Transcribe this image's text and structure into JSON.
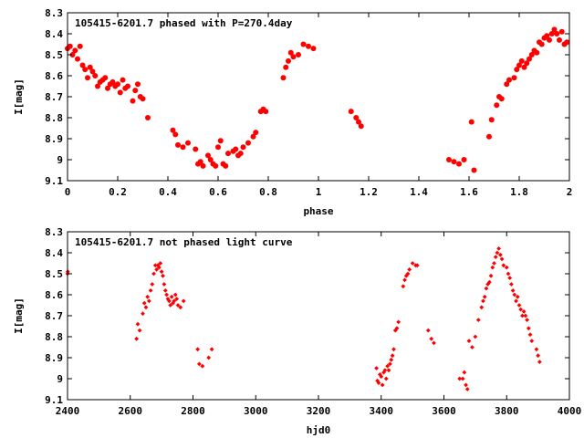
{
  "colors": {
    "points": "#ff0000",
    "axes": "#000000",
    "background": "#ffffff"
  },
  "chart_data": [
    {
      "type": "scatter",
      "title": "105415-6201.7 phased with P=270.4day",
      "xlabel": "phase",
      "ylabel": "I[mag]",
      "xlim": [
        0,
        2
      ],
      "ylim": [
        9.1,
        8.3
      ],
      "y_inverted": true,
      "grid": false,
      "marker": "filled-dot",
      "xticks": [
        "0",
        "0.2",
        "0.4",
        "0.6",
        "0.8",
        "1",
        "1.2",
        "1.4",
        "1.6",
        "1.8",
        "2"
      ],
      "yticks": [
        "8.3",
        "8.4",
        "8.5",
        "8.6",
        "8.7",
        "8.8",
        "8.9",
        "9",
        "9.1"
      ],
      "x": [
        0.0,
        0.01,
        0.02,
        0.03,
        0.04,
        0.05,
        0.06,
        0.07,
        0.08,
        0.09,
        0.1,
        0.11,
        0.12,
        0.13,
        0.14,
        0.15,
        0.16,
        0.17,
        0.18,
        0.19,
        0.2,
        0.21,
        0.22,
        0.23,
        0.24,
        0.26,
        0.27,
        0.28,
        0.29,
        0.3,
        0.32,
        0.42,
        0.43,
        0.44,
        0.46,
        0.48,
        0.51,
        0.52,
        0.53,
        0.54,
        0.56,
        0.57,
        0.58,
        0.59,
        0.6,
        0.61,
        0.62,
        0.63,
        0.64,
        0.66,
        0.67,
        0.68,
        0.69,
        0.7,
        0.72,
        0.74,
        0.75,
        0.77,
        0.78,
        0.79,
        0.86,
        0.87,
        0.88,
        0.89,
        0.9,
        0.92,
        0.94,
        0.96,
        0.98,
        1.13,
        1.15,
        1.16,
        1.17,
        1.52,
        1.54,
        1.56,
        1.58,
        1.61,
        1.62,
        1.68,
        1.69,
        1.71,
        1.72,
        1.73,
        1.75,
        1.76,
        1.78,
        1.79,
        1.8,
        1.81,
        1.82,
        1.83,
        1.84,
        1.85,
        1.86,
        1.87,
        1.88,
        1.89,
        1.9,
        1.91,
        1.92,
        1.93,
        1.94,
        1.95,
        1.96,
        1.97,
        1.98,
        1.99
      ],
      "y": [
        8.47,
        8.46,
        8.5,
        8.48,
        8.52,
        8.46,
        8.55,
        8.57,
        8.61,
        8.56,
        8.58,
        8.6,
        8.65,
        8.63,
        8.62,
        8.61,
        8.66,
        8.64,
        8.63,
        8.65,
        8.64,
        8.68,
        8.62,
        8.66,
        8.65,
        8.72,
        8.67,
        8.64,
        8.7,
        8.71,
        8.8,
        8.86,
        8.88,
        8.93,
        8.94,
        8.92,
        8.95,
        9.02,
        9.01,
        9.03,
        8.98,
        9.0,
        9.02,
        9.03,
        8.94,
        8.91,
        9.02,
        9.03,
        8.97,
        8.96,
        8.95,
        8.98,
        8.97,
        8.94,
        8.92,
        8.89,
        8.87,
        8.77,
        8.76,
        8.77,
        8.61,
        8.56,
        8.53,
        8.49,
        8.51,
        8.5,
        8.45,
        8.46,
        8.47,
        8.77,
        8.8,
        8.82,
        8.84,
        9.0,
        9.01,
        9.02,
        9.0,
        8.82,
        9.05,
        8.89,
        8.81,
        8.74,
        8.7,
        8.71,
        8.64,
        8.62,
        8.61,
        8.57,
        8.55,
        8.53,
        8.56,
        8.54,
        8.52,
        8.5,
        8.48,
        8.49,
        8.44,
        8.45,
        8.42,
        8.41,
        8.43,
        8.4,
        8.38,
        8.4,
        8.43,
        8.39,
        8.45,
        8.44
      ]
    },
    {
      "type": "scatter",
      "title": "105415-6201.7 not phased light curve",
      "xlabel": "hjd0",
      "ylabel": "I[mag]",
      "xlim": [
        2400,
        4000
      ],
      "ylim": [
        9.1,
        8.3
      ],
      "y_inverted": true,
      "grid": false,
      "marker": "small-diamond",
      "xticks": [
        "2400",
        "2600",
        "2800",
        "3000",
        "3200",
        "3400",
        "3600",
        "3800",
        "4000"
      ],
      "yticks": [
        "8.3",
        "8.4",
        "8.5",
        "8.6",
        "8.7",
        "8.8",
        "8.9",
        "9",
        "9.1"
      ],
      "x": [
        2400,
        2401,
        2620,
        2624,
        2630,
        2640,
        2645,
        2650,
        2655,
        2660,
        2665,
        2670,
        2675,
        2680,
        2684,
        2688,
        2692,
        2696,
        2700,
        2704,
        2708,
        2712,
        2716,
        2720,
        2724,
        2728,
        2732,
        2736,
        2740,
        2744,
        2748,
        2752,
        2760,
        2770,
        2815,
        2820,
        2830,
        2850,
        2860,
        3385,
        3388,
        3392,
        3396,
        3400,
        3404,
        3408,
        3412,
        3416,
        3420,
        3424,
        3428,
        3432,
        3436,
        3440,
        3445,
        3450,
        3455,
        3470,
        3475,
        3480,
        3485,
        3490,
        3500,
        3510,
        3515,
        3550,
        3560,
        3568,
        3650,
        3660,
        3665,
        3670,
        3675,
        3680,
        3690,
        3700,
        3710,
        3720,
        3725,
        3730,
        3735,
        3740,
        3745,
        3750,
        3755,
        3760,
        3765,
        3770,
        3775,
        3780,
        3785,
        3790,
        3800,
        3805,
        3810,
        3815,
        3820,
        3825,
        3830,
        3835,
        3840,
        3845,
        3850,
        3855,
        3860,
        3865,
        3870,
        3875,
        3880,
        3895,
        3900,
        3905
      ],
      "y": [
        8.5,
        8.49,
        8.81,
        8.74,
        8.77,
        8.69,
        8.64,
        8.66,
        8.61,
        8.63,
        8.58,
        8.55,
        8.5,
        8.46,
        8.48,
        8.46,
        8.47,
        8.45,
        8.49,
        8.51,
        8.55,
        8.58,
        8.6,
        8.62,
        8.63,
        8.65,
        8.61,
        8.64,
        8.63,
        8.6,
        8.62,
        8.65,
        8.66,
        8.63,
        8.86,
        8.93,
        8.94,
        8.9,
        8.86,
        8.95,
        9.01,
        9.02,
        8.98,
        8.99,
        9.03,
        8.97,
        8.96,
        9.0,
        8.94,
        8.96,
        8.93,
        8.91,
        8.89,
        8.86,
        8.77,
        8.76,
        8.73,
        8.56,
        8.53,
        8.51,
        8.5,
        8.48,
        8.45,
        8.46,
        8.46,
        8.77,
        8.81,
        8.83,
        9.0,
        9.0,
        8.97,
        9.03,
        9.05,
        8.82,
        8.85,
        8.8,
        8.72,
        8.66,
        8.63,
        8.61,
        8.57,
        8.55,
        8.54,
        8.51,
        8.47,
        8.45,
        8.42,
        8.4,
        8.38,
        8.41,
        8.43,
        8.46,
        8.47,
        8.5,
        8.52,
        8.55,
        8.58,
        8.6,
        8.63,
        8.61,
        8.65,
        8.67,
        8.7,
        8.68,
        8.7,
        8.72,
        8.76,
        8.79,
        8.82,
        8.86,
        8.89,
        8.92
      ]
    }
  ]
}
